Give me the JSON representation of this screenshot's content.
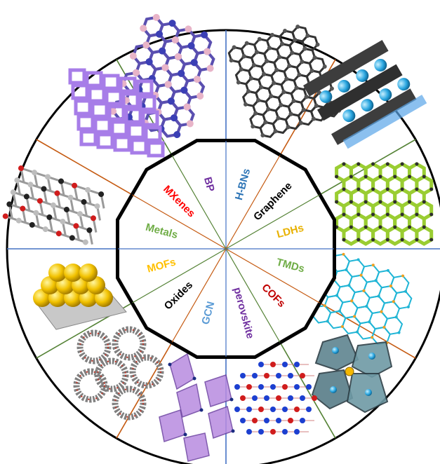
{
  "diagram": {
    "sectors": [
      {
        "label": "H-BNs",
        "color": "#2e75b6",
        "image": "boron-nitride-lattice"
      },
      {
        "label": "Graphene",
        "color": "#000000",
        "image": "graphene-lattice"
      },
      {
        "label": "LDHs",
        "color": "#e8b100",
        "image": "layered-double-hydroxide"
      },
      {
        "label": "TMDs",
        "color": "#70ad47",
        "image": "transition-metal-dichalcogenide"
      },
      {
        "label": "COFs",
        "color": "#c00000",
        "image": "covalent-organic-framework"
      },
      {
        "label": "perovskite",
        "color": "#7030a0",
        "image": "perovskite-octahedra"
      },
      {
        "label": "GCN",
        "color": "#5b9bd5",
        "image": "graphitic-carbon-nitride"
      },
      {
        "label": "Oxides",
        "color": "#000000",
        "image": "oxide-polyhedra"
      },
      {
        "label": "MOFs",
        "color": "#ffc000",
        "image": "metal-organic-framework"
      },
      {
        "label": "Metals",
        "color": "#70ad47",
        "image": "metal-cluster-on-support"
      },
      {
        "label": "MXenes",
        "color": "#ff0000",
        "image": "mxene-lattice"
      },
      {
        "label": "BP",
        "color": "#7030a0",
        "image": "black-phosphorus-lattice"
      }
    ],
    "divider_colors": [
      "#4472c4",
      "#c55a11",
      "#548235"
    ]
  }
}
